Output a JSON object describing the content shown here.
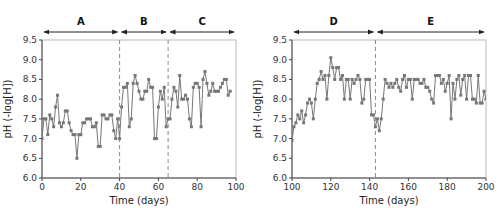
{
  "chart_data": [
    {
      "type": "line",
      "x_label": "Time (days)",
      "y_label": "pH (-log[H])",
      "xlim": [
        0,
        100
      ],
      "ylim": [
        6.0,
        9.5
      ],
      "xticks": [
        0,
        20,
        40,
        60,
        80,
        100
      ],
      "yticks": [
        {
          "value": 6.0,
          "label": "6.0"
        },
        6.5,
        {
          "value": 7.0,
          "label": "7.0"
        },
        7.5,
        {
          "value": 8.0,
          "label": "8.0"
        },
        8.5,
        {
          "value": 9.0,
          "label": "9.0"
        },
        9.5
      ],
      "vlines": [
        40,
        65
      ],
      "annotations": [
        {
          "label": "A",
          "x_start": 0,
          "x_end": 40
        },
        {
          "label": "B",
          "x_start": 40,
          "x_end": 65
        },
        {
          "label": "C",
          "x_start": 65,
          "x_end": 100
        }
      ],
      "x": [
        0,
        1,
        2,
        3,
        4,
        5,
        6,
        7,
        8,
        9,
        10,
        11,
        12,
        13,
        14,
        15,
        16,
        17,
        18,
        19,
        20,
        21,
        22,
        23,
        24,
        25,
        26,
        27,
        28,
        29,
        30,
        31,
        32,
        33,
        34,
        35,
        36,
        37,
        38,
        39,
        40,
        41,
        42,
        43,
        44,
        45,
        46,
        47,
        48,
        49,
        50,
        51,
        52,
        53,
        54,
        55,
        56,
        57,
        58,
        59,
        60,
        61,
        62,
        63,
        64,
        65,
        66,
        67,
        68,
        69,
        70,
        71,
        72,
        73,
        74,
        75,
        76,
        77,
        78,
        79,
        80,
        81,
        82,
        83,
        84,
        85,
        86,
        87,
        88,
        89,
        90,
        91,
        92,
        93,
        94,
        95,
        96,
        97
      ],
      "series": [
        {
          "color": "#777777",
          "marker": "square",
          "values": [
            7.0,
            7.5,
            7.5,
            7.1,
            7.6,
            7.5,
            7.3,
            7.8,
            8.1,
            7.4,
            7.3,
            7.4,
            7.7,
            7.7,
            7.4,
            7.2,
            7.1,
            7.1,
            6.5,
            7.1,
            7.1,
            7.4,
            7.4,
            7.5,
            7.5,
            7.5,
            7.3,
            7.3,
            7.4,
            6.8,
            6.8,
            7.6,
            7.6,
            7.5,
            7.5,
            7.6,
            7.6,
            7.2,
            7.0,
            7.5,
            7.0,
            7.8,
            8.3,
            8.3,
            8.4,
            7.3,
            7.5,
            8.4,
            8.6,
            8.4,
            8.2,
            8.0,
            8.0,
            8.2,
            8.2,
            8.5,
            8.3,
            8.3,
            7.0,
            7.0,
            7.8,
            8.2,
            8.0,
            8.3,
            7.3,
            7.5,
            7.5,
            8.0,
            8.3,
            8.2,
            7.8,
            8.6,
            8.0,
            8.0,
            8.1,
            8.0,
            7.5,
            7.3,
            8.3,
            8.4,
            8.4,
            8.3,
            7.3,
            8.5,
            8.7,
            8.4,
            8.1,
            8.2,
            8.4,
            8.2,
            8.2,
            8.2,
            8.3,
            8.4,
            8.5,
            8.5,
            8.1,
            8.2
          ]
        }
      ]
    },
    {
      "type": "line",
      "x_label": "Time (days)",
      "y_label": "pH (-log[H])",
      "xlim": [
        100,
        200
      ],
      "ylim": [
        6.0,
        9.5
      ],
      "xticks": [
        100,
        120,
        140,
        160,
        180,
        200
      ],
      "yticks": [
        {
          "value": 6.0,
          "label": "6.0"
        },
        6.5,
        {
          "value": 7.0,
          "label": "7.0"
        },
        7.5,
        {
          "value": 8.0,
          "label": "8.0"
        },
        8.5,
        {
          "value": 9.0,
          "label": "9.0"
        },
        9.5
      ],
      "vlines": [
        143
      ],
      "annotations": [
        {
          "label": "D",
          "x_start": 100,
          "x_end": 143
        },
        {
          "label": "E",
          "x_start": 143,
          "x_end": 200
        }
      ],
      "x": [
        100,
        101,
        102,
        103,
        104,
        105,
        106,
        107,
        108,
        109,
        110,
        111,
        112,
        113,
        114,
        115,
        116,
        117,
        118,
        119,
        120,
        121,
        122,
        123,
        124,
        125,
        126,
        127,
        128,
        129,
        130,
        131,
        132,
        133,
        134,
        135,
        136,
        137,
        138,
        139,
        140,
        141,
        142,
        143,
        144,
        145,
        146,
        147,
        148,
        149,
        150,
        151,
        152,
        153,
        154,
        155,
        156,
        157,
        158,
        159,
        160,
        161,
        162,
        163,
        164,
        165,
        166,
        167,
        168,
        169,
        170,
        171,
        172,
        173,
        174,
        175,
        176,
        177,
        178,
        179,
        180,
        181,
        182,
        183,
        184,
        185,
        186,
        187,
        188,
        189,
        190,
        191,
        192,
        193,
        194,
        195,
        196,
        197,
        198,
        199,
        200
      ],
      "series": [
        {
          "color": "#777777",
          "marker": "square",
          "values": [
            6.95,
            7.3,
            7.4,
            7.6,
            7.5,
            7.7,
            7.4,
            7.6,
            7.9,
            8.0,
            7.9,
            7.5,
            8.0,
            8.4,
            8.5,
            8.7,
            8.5,
            8.6,
            8.0,
            8.6,
            9.05,
            8.8,
            8.5,
            8.8,
            8.8,
            8.5,
            8.6,
            8.0,
            8.5,
            8.5,
            8.0,
            8.5,
            8.4,
            8.5,
            8.6,
            8.5,
            7.9,
            8.0,
            8.5,
            8.5,
            8.5,
            7.6,
            7.6,
            7.3,
            7.5,
            7.2,
            7.5,
            8.0,
            8.5,
            8.4,
            8.3,
            8.4,
            8.3,
            8.4,
            8.5,
            8.3,
            8.2,
            8.5,
            8.6,
            8.3,
            8.5,
            8.5,
            8.0,
            8.5,
            8.5,
            8.5,
            8.4,
            8.4,
            8.5,
            8.3,
            8.3,
            8.2,
            8.0,
            7.9,
            8.6,
            8.6,
            8.6,
            8.4,
            8.5,
            8.2,
            8.4,
            8.6,
            7.5,
            8.4,
            8.0,
            8.5,
            8.6,
            8.1,
            8.5,
            8.6,
            8.0,
            8.6,
            8.6,
            8.0,
            8.0,
            7.9,
            8.6,
            7.9,
            7.9,
            8.2,
            8.0
          ]
        }
      ]
    }
  ]
}
